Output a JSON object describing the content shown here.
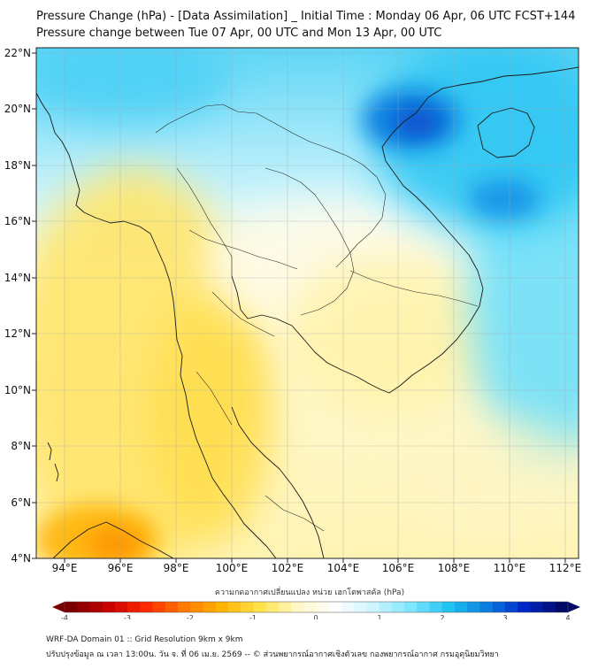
{
  "title_line1": "Pressure Change (hPa) - [Data Assimilation] _ Initial Time : Monday 06 Apr, 06 UTC FCST+144",
  "title_line2": "Pressure change between Tue 07 Apr, 00 UTC and Mon 13 Apr, 00 UTC",
  "map": {
    "lon_ticks": [
      "94°E",
      "96°E",
      "98°E",
      "100°E",
      "102°E",
      "104°E",
      "106°E",
      "108°E",
      "110°E",
      "112°E"
    ],
    "lat_ticks": [
      "22°N",
      "20°N",
      "18°N",
      "16°N",
      "14°N",
      "12°N",
      "10°N",
      "8°N",
      "6°N",
      "4°N"
    ],
    "lon_range": [
      93,
      112.5
    ],
    "lat_range": [
      4,
      22.2
    ],
    "field_summary": {
      "min_hpa": -2.5,
      "max_hpa": 3.2,
      "strong_rise_center": "Gulf of Tonkin ~20N 106.5E",
      "fall_region": "Myanmar / Andaman Sea / southern Thailand"
    }
  },
  "colorbar": {
    "title": "ความกดอากาศเปลี่ยนแปลง หน่วย เฮกโตพาสคัล (hPa)",
    "ticks": [
      "-4",
      "-3",
      "-2",
      "-1",
      "0",
      "1",
      "2",
      "3",
      "4"
    ],
    "range": [
      -4,
      4
    ],
    "colors": [
      "#7a0000",
      "#c80000",
      "#ff2a00",
      "#ff7a00",
      "#ffb400",
      "#ffe24a",
      "#fff7c6",
      "#ffffff",
      "#cdf5ff",
      "#7fe6ff",
      "#22c4f2",
      "#0b7fe0",
      "#0026c8",
      "#000a66"
    ]
  },
  "footer": {
    "line1": "WRF-DA Domain 01 :: Grid Resolution 9km x 9km",
    "line2": "ปรับปรุงข้อมูล ณ เวลา 13:00น. วัน จ. ที่ 06 เม.ย. 2569 -- © ส่วนพยากรณ์อากาศเชิงตัวเลข กองพยากรณ์อากาศ กรมอุตุนิยมวิทยา"
  }
}
